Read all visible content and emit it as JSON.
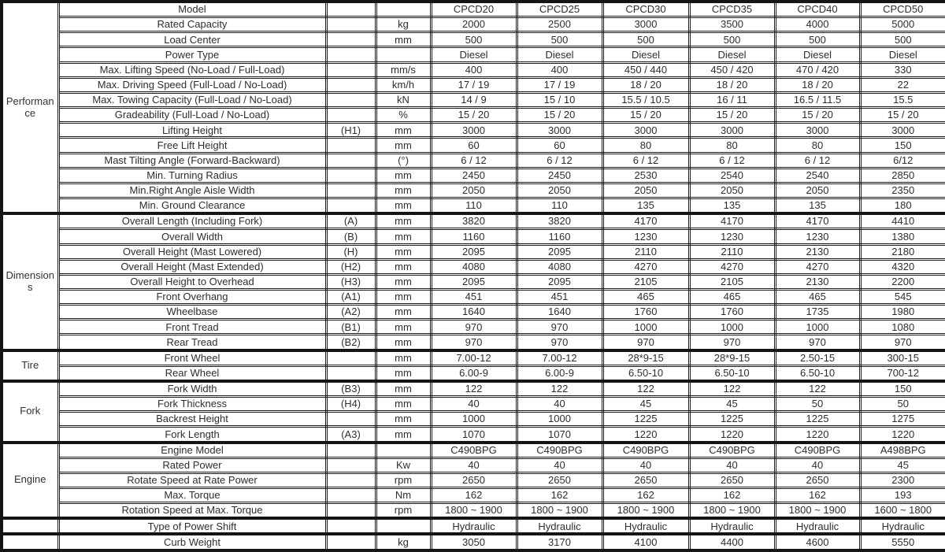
{
  "table": {
    "models": [
      "CPCD20",
      "CPCD25",
      "CPCD30",
      "CPCD35",
      "CPCD40",
      "CPCD50"
    ],
    "sections": [
      {
        "category": "Performance",
        "rows": [
          {
            "label": "Model",
            "symbol": "",
            "unit": "",
            "values": [
              "CPCD20",
              "CPCD25",
              "CPCD30",
              "CPCD35",
              "CPCD40",
              "CPCD50"
            ]
          },
          {
            "label": "Rated Capacity",
            "symbol": "",
            "unit": "kg",
            "values": [
              "2000",
              "2500",
              "3000",
              "3500",
              "4000",
              "5000"
            ]
          },
          {
            "label": "Load Center",
            "symbol": "",
            "unit": "mm",
            "values": [
              "500",
              "500",
              "500",
              "500",
              "500",
              "500"
            ]
          },
          {
            "label": "Power Type",
            "symbol": "",
            "unit": "",
            "values": [
              "Diesel",
              "Diesel",
              "Diesel",
              "Diesel",
              "Diesel",
              "Diesel"
            ]
          },
          {
            "label": "Max. Lifting Speed (No-Load / Full-Load)",
            "symbol": "",
            "unit": "mm/s",
            "values": [
              "400",
              "400",
              "450 / 440",
              "450 / 420",
              "470 / 420",
              "330"
            ]
          },
          {
            "label": "Max. Driving Speed (Full-Load / No-Load)",
            "symbol": "",
            "unit": "km/h",
            "values": [
              "17 / 19",
              "17 / 19",
              "18 / 20",
              "18 / 20",
              "18 / 20",
              "22"
            ]
          },
          {
            "label": "Max. Towing Capacity (Full-Load / No-Load)",
            "symbol": "",
            "unit": "kN",
            "values": [
              "14 / 9",
              "15 / 10",
              "15.5 / 10.5",
              "16 / 11",
              "16.5 / 11.5",
              "15.5"
            ]
          },
          {
            "label": "Gradeability (Full-Load / No-Load)",
            "symbol": "",
            "unit": "%",
            "values": [
              "15 / 20",
              "15 / 20",
              "15 / 20",
              "15 / 20",
              "15 / 20",
              "15 / 20"
            ]
          },
          {
            "label": "Lifting Height",
            "symbol": "(H1)",
            "unit": "mm",
            "values": [
              "3000",
              "3000",
              "3000",
              "3000",
              "3000",
              "3000"
            ]
          },
          {
            "label": "Free Lift Height",
            "symbol": "",
            "unit": "mm",
            "values": [
              "60",
              "60",
              "80",
              "80",
              "80",
              "150"
            ]
          },
          {
            "label": "Mast Tilting Angle (Forward-Backward)",
            "symbol": "",
            "unit": "(°)",
            "values": [
              "6 / 12",
              "6 / 12",
              "6 / 12",
              "6 / 12",
              "6 / 12",
              "6/12"
            ]
          },
          {
            "label": "Min. Turning Radius",
            "symbol": "",
            "unit": "mm",
            "values": [
              "2450",
              "2450",
              "2530",
              "2540",
              "2540",
              "2850"
            ]
          },
          {
            "label": "Min.Right Angle Aisle Width",
            "symbol": "",
            "unit": "mm",
            "values": [
              "2050",
              "2050",
              "2050",
              "2050",
              "2050",
              "2350"
            ]
          },
          {
            "label": "Min. Ground Clearance",
            "symbol": "",
            "unit": "mm",
            "values": [
              "110",
              "110",
              "135",
              "135",
              "135",
              "180"
            ]
          }
        ]
      },
      {
        "category": "Dimensions",
        "rows": [
          {
            "label": "Overall Length (Including Fork)",
            "symbol": "(A)",
            "unit": "mm",
            "values": [
              "3820",
              "3820",
              "4170",
              "4170",
              "4170",
              "4410"
            ]
          },
          {
            "label": "Overall Width",
            "symbol": "(B)",
            "unit": "mm",
            "values": [
              "1160",
              "1160",
              "1230",
              "1230",
              "1230",
              "1380"
            ]
          },
          {
            "label": "Overall Height (Mast Lowered)",
            "symbol": "(H)",
            "unit": "mm",
            "values": [
              "2095",
              "2095",
              "2110",
              "2110",
              "2130",
              "2180"
            ]
          },
          {
            "label": "Overall Height (Mast Extended)",
            "symbol": "(H2)",
            "unit": "mm",
            "values": [
              "4080",
              "4080",
              "4270",
              "4270",
              "4270",
              "4320"
            ]
          },
          {
            "label": "Overall Height to Overhead",
            "symbol": "(H3)",
            "unit": "mm",
            "values": [
              "2095",
              "2095",
              "2105",
              "2105",
              "2130",
              "2200"
            ]
          },
          {
            "label": "Front Overhang",
            "symbol": "(A1)",
            "unit": "mm",
            "values": [
              "451",
              "451",
              "465",
              "465",
              "465",
              "545"
            ]
          },
          {
            "label": "Wheelbase",
            "symbol": "(A2)",
            "unit": "mm",
            "values": [
              "1640",
              "1640",
              "1760",
              "1760",
              "1735",
              "1980"
            ]
          },
          {
            "label": "Front Tread",
            "symbol": "(B1)",
            "unit": "mm",
            "values": [
              "970",
              "970",
              "1000",
              "1000",
              "1000",
              "1080"
            ]
          },
          {
            "label": "Rear Tread",
            "symbol": "(B2)",
            "unit": "mm",
            "values": [
              "970",
              "970",
              "970",
              "970",
              "970",
              "970"
            ]
          }
        ]
      },
      {
        "category": "Tire",
        "rows": [
          {
            "label": "Front Wheel",
            "symbol": "",
            "unit": "mm",
            "values": [
              "7.00-12",
              "7.00-12",
              "28*9-15",
              "28*9-15",
              "2.50-15",
              "300-15"
            ]
          },
          {
            "label": "Rear Wheel",
            "symbol": "",
            "unit": "mm",
            "values": [
              "6.00-9",
              "6.00-9",
              "6.50-10",
              "6.50-10",
              "6.50-10",
              "700-12"
            ]
          }
        ]
      },
      {
        "category": "Fork",
        "rows": [
          {
            "label": "Fork Width",
            "symbol": "(B3)",
            "unit": "mm",
            "values": [
              "122",
              "122",
              "122",
              "122",
              "122",
              "150"
            ]
          },
          {
            "label": "Fork Thickness",
            "symbol": "(H4)",
            "unit": "mm",
            "values": [
              "40",
              "40",
              "45",
              "45",
              "50",
              "50"
            ]
          },
          {
            "label": "Backrest Height",
            "symbol": "",
            "unit": "mm",
            "values": [
              "1000",
              "1000",
              "1225",
              "1225",
              "1225",
              "1275"
            ]
          },
          {
            "label": "Fork Length",
            "symbol": "(A3)",
            "unit": "mm",
            "values": [
              "1070",
              "1070",
              "1220",
              "1220",
              "1220",
              "1220"
            ]
          }
        ]
      },
      {
        "category": "Engine",
        "rows": [
          {
            "label": "Engine Model",
            "symbol": "",
            "unit": "",
            "values": [
              "C490BPG",
              "C490BPG",
              "C490BPG",
              "C490BPG",
              "C490BPG",
              "A498BPG"
            ]
          },
          {
            "label": "Rated Power",
            "symbol": "",
            "unit": "Kw",
            "values": [
              "40",
              "40",
              "40",
              "40",
              "40",
              "45"
            ]
          },
          {
            "label": "Rotate Speed at Rate Power",
            "symbol": "",
            "unit": "rpm",
            "values": [
              "2650",
              "2650",
              "2650",
              "2650",
              "2650",
              "2300"
            ]
          },
          {
            "label": "Max. Torque",
            "symbol": "",
            "unit": "Nm",
            "values": [
              "162",
              "162",
              "162",
              "162",
              "162",
              "193"
            ]
          },
          {
            "label": "Rotation Speed at Max. Torque",
            "symbol": "",
            "unit": "rpm",
            "values": [
              "1800 ~ 1900",
              "1800 ~ 1900",
              "1800 ~ 1900",
              "1800 ~ 1900",
              "1800 ~ 1900",
              "1600 ~ 1800"
            ]
          }
        ]
      },
      {
        "category": "",
        "rows": [
          {
            "label": "Type of Power Shift",
            "symbol": "",
            "unit": "",
            "values": [
              "Hydraulic",
              "Hydraulic",
              "Hydraulic",
              "Hydraulic",
              "Hydraulic",
              "Hydraulic"
            ]
          }
        ]
      },
      {
        "category": "",
        "rows": [
          {
            "label": "Curb Weight",
            "symbol": "",
            "unit": "kg",
            "values": [
              "3050",
              "3170",
              "4100",
              "4400",
              "4600",
              "5550"
            ]
          }
        ]
      }
    ],
    "colors": {
      "border": "#151515",
      "text": "#2e2e2e",
      "background": "#ffffff"
    }
  }
}
